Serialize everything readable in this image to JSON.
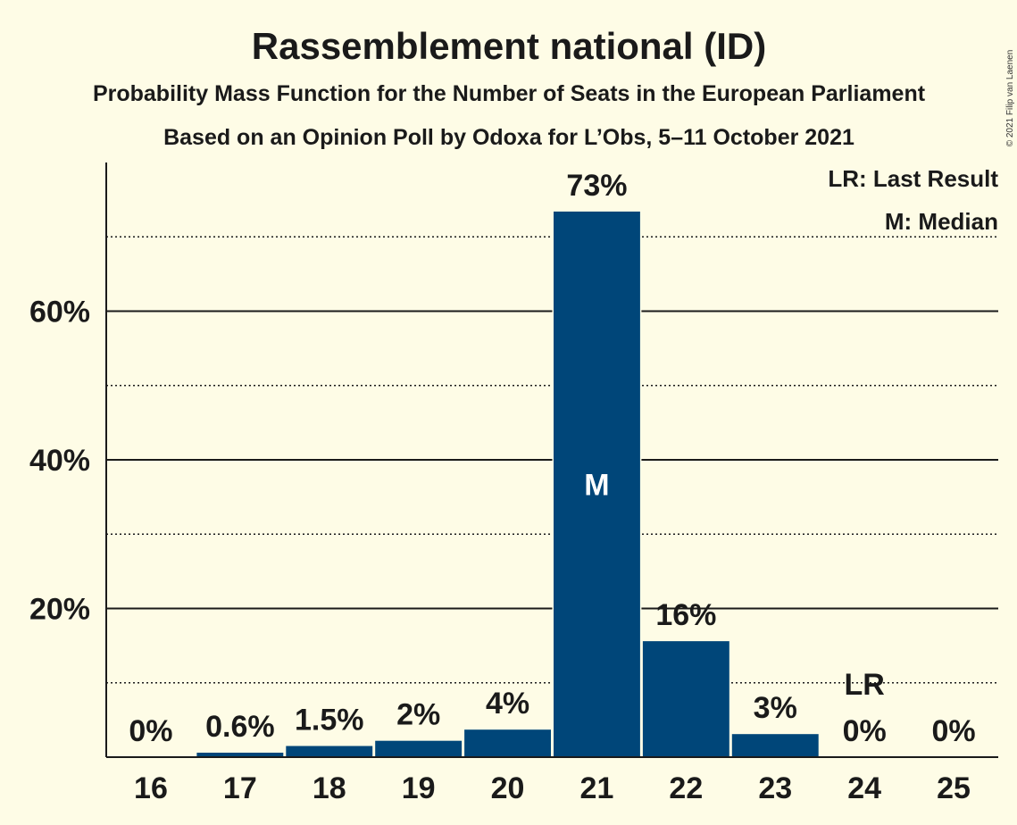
{
  "chart_data": {
    "type": "bar",
    "title": "Rassemblement national (ID)",
    "subtitle": "Probability Mass Function for the Number of Seats in the European Parliament",
    "subtitle2": "Based on an Opinion Poll by Odoxa for L’Obs, 5–11 October 2021",
    "copyright": "© 2021 Filip van Laenen",
    "categories": [
      "16",
      "17",
      "18",
      "19",
      "20",
      "21",
      "22",
      "23",
      "24",
      "25"
    ],
    "values": [
      0,
      0.6,
      1.5,
      2.2,
      3.7,
      73.4,
      15.6,
      3.1,
      0,
      0
    ],
    "value_labels": [
      "0%",
      "0.6%",
      "1.5%",
      "2%",
      "4%",
      "73%",
      "16%",
      "3%",
      "0%",
      "0%"
    ],
    "ylim": [
      0,
      80
    ],
    "yticks": [
      20,
      40,
      60
    ],
    "ytick_labels": [
      "20%",
      "40%",
      "60%"
    ],
    "minor_gridlines": [
      10,
      30,
      50,
      70
    ],
    "median_category": "21",
    "median_marker": "M",
    "last_result_category": "24",
    "last_result_marker": "LR",
    "legend": [
      "LR: Last Result",
      "M: Median"
    ],
    "legend_position": "top-right",
    "bar_color": "#004679"
  }
}
